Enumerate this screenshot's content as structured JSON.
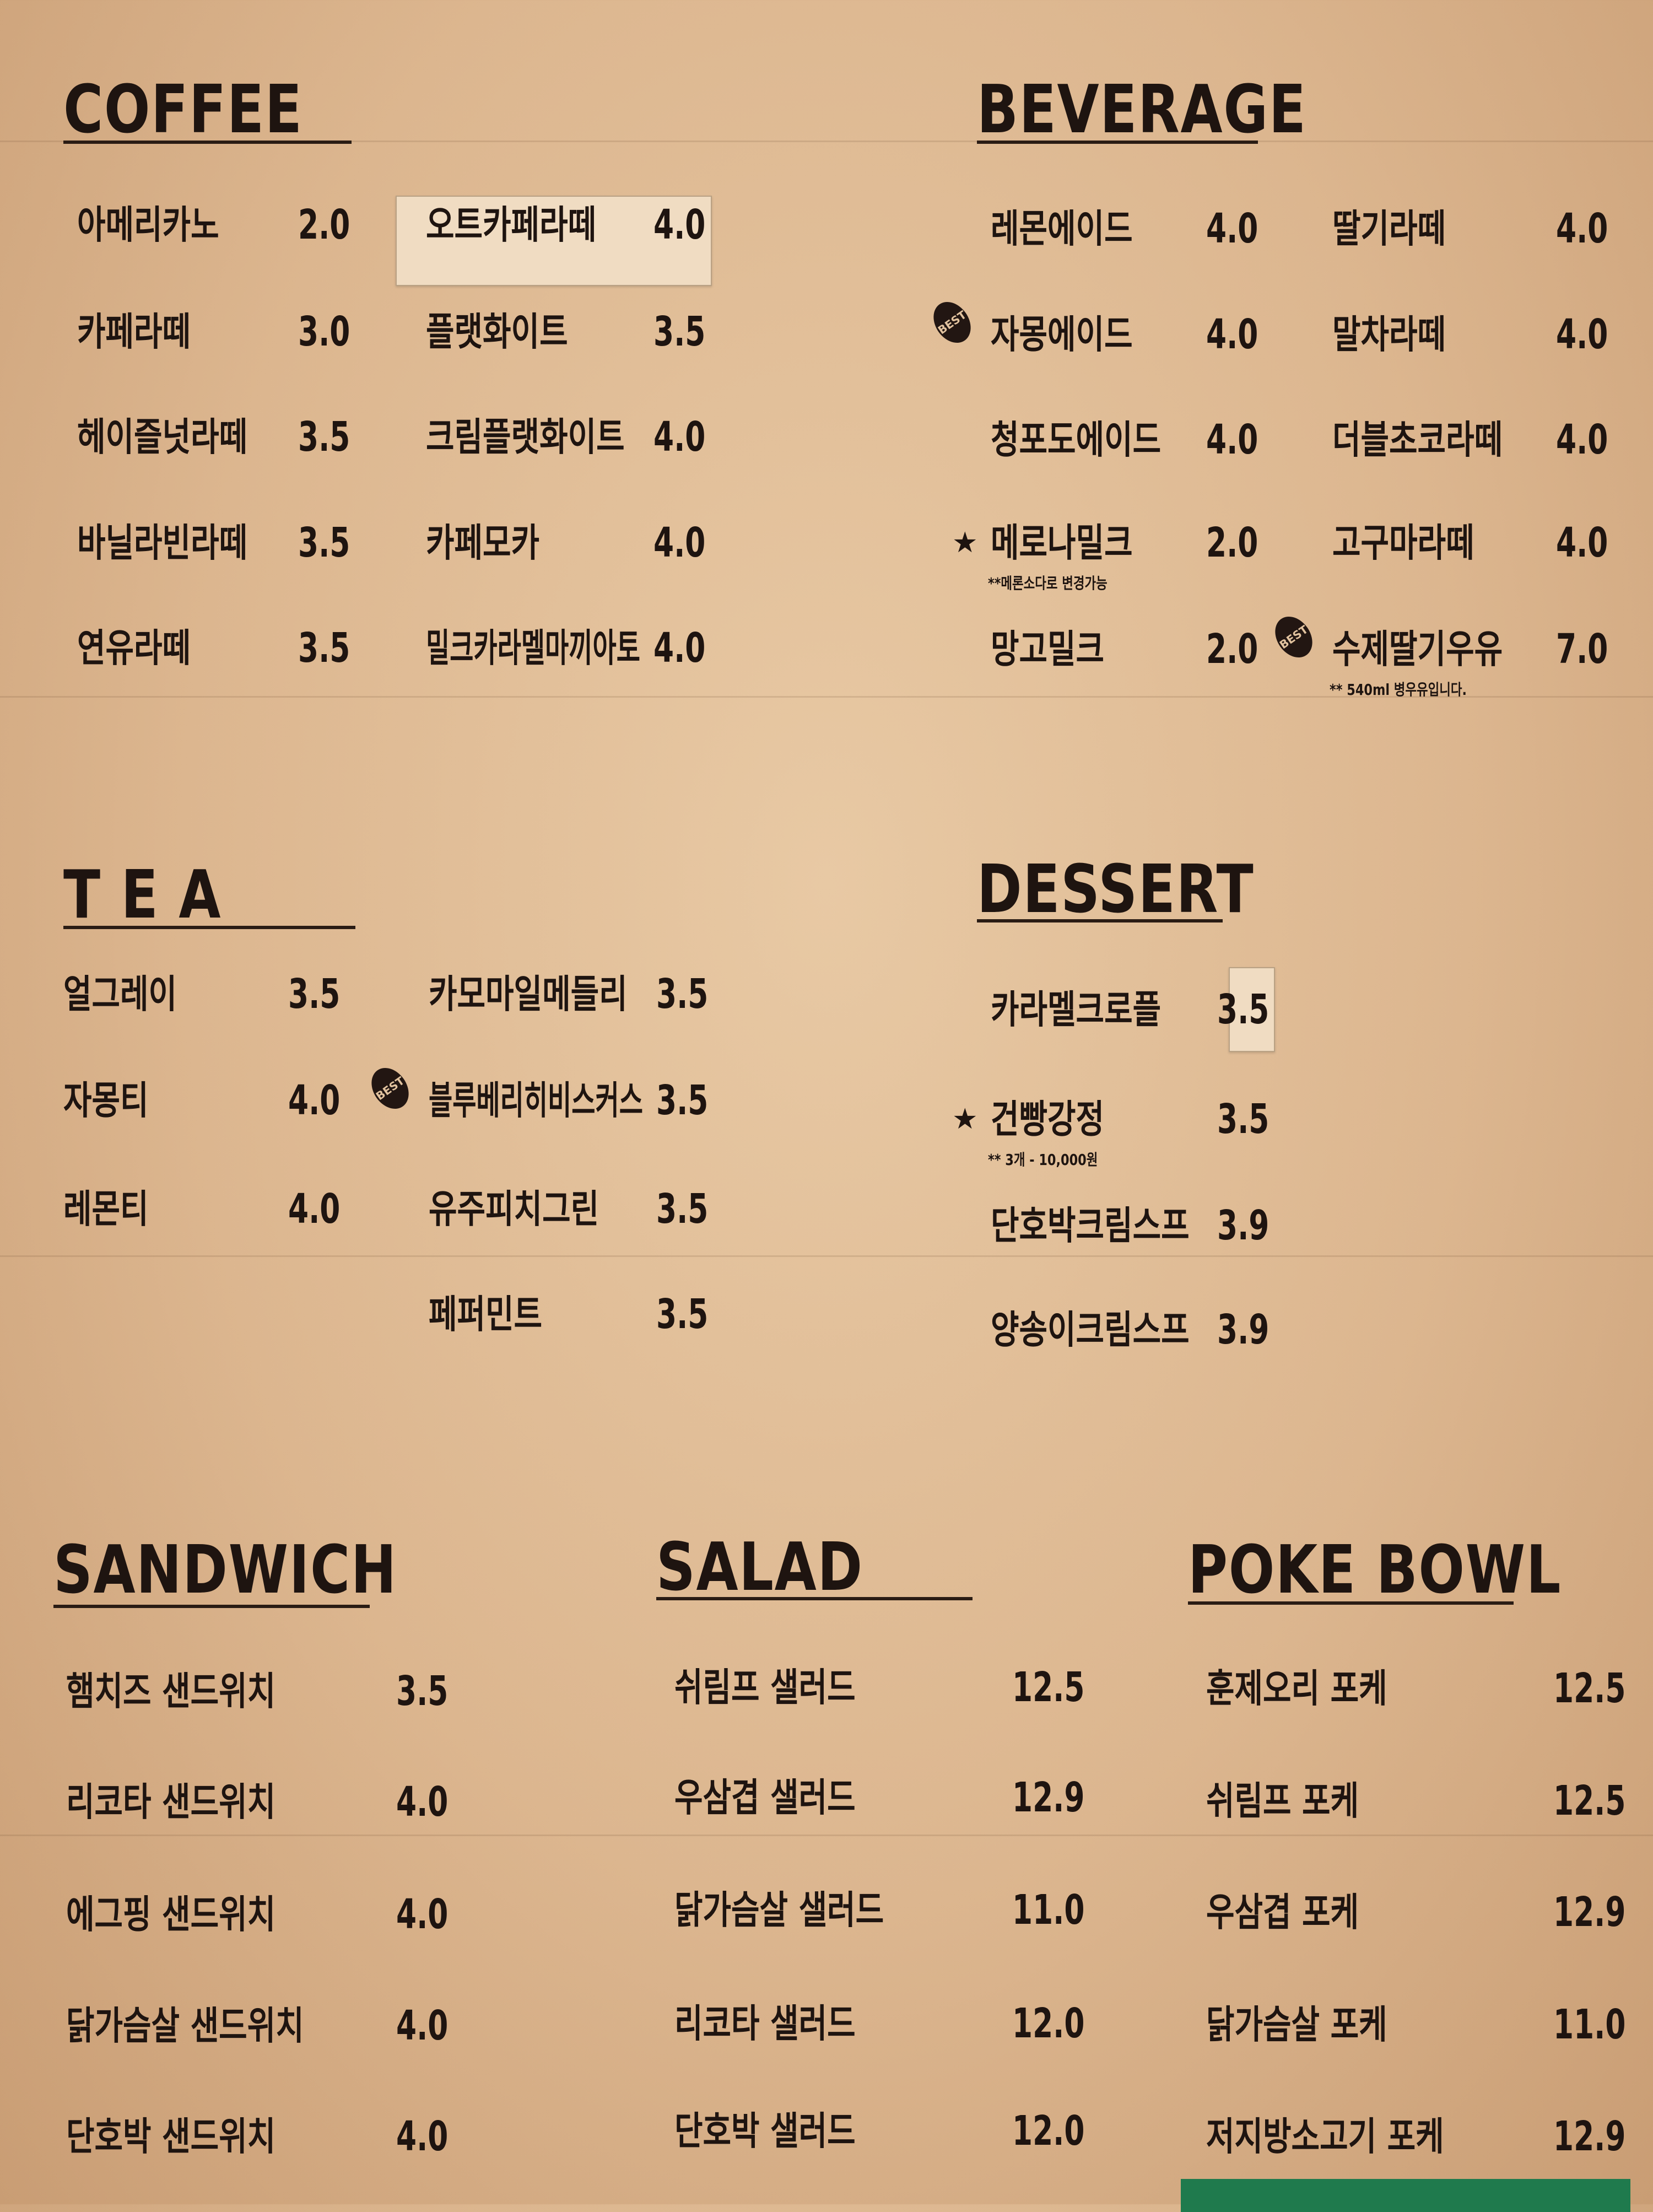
{
  "sections": {
    "coffee": {
      "title": "COFFEE",
      "items": [
        {
          "name": "아메리카노",
          "price": "2.0"
        },
        {
          "name": "카페라떼",
          "price": "3.0"
        },
        {
          "name": "헤이즐넛라떼",
          "price": "3.5"
        },
        {
          "name": "바닐라빈라떼",
          "price": "3.5"
        },
        {
          "name": "연유라떼",
          "price": "3.5"
        },
        {
          "name": "오트카페라떼",
          "price": "4.0"
        },
        {
          "name": "플랫화이트",
          "price": "3.5"
        },
        {
          "name": "크림플랫화이트",
          "price": "4.0"
        },
        {
          "name": "카페모카",
          "price": "4.0"
        },
        {
          "name": "밀크카라멜마끼아토",
          "price": "4.0"
        }
      ]
    },
    "beverage": {
      "title": "BEVERAGE",
      "items": [
        {
          "name": "레몬에이드",
          "price": "4.0"
        },
        {
          "name": "자몽에이드",
          "price": "4.0",
          "badge": "BEST"
        },
        {
          "name": "청포도에이드",
          "price": "4.0"
        },
        {
          "name": "메로나밀크",
          "price": "2.0",
          "star": true,
          "note": "**메론소다로 변경가능"
        },
        {
          "name": "망고밀크",
          "price": "2.0"
        },
        {
          "name": "딸기라떼",
          "price": "4.0"
        },
        {
          "name": "말차라떼",
          "price": "4.0"
        },
        {
          "name": "더블초코라떼",
          "price": "4.0"
        },
        {
          "name": "고구마라떼",
          "price": "4.0"
        },
        {
          "name": "수제딸기우유",
          "price": "7.0",
          "badge": "BEST",
          "note": "** 540ml 병우유입니다."
        }
      ]
    },
    "tea": {
      "title": "T E A",
      "items": [
        {
          "name": "얼그레이",
          "price": "3.5"
        },
        {
          "name": "자몽티",
          "price": "4.0"
        },
        {
          "name": "레몬티",
          "price": "4.0"
        },
        {
          "name": "카모마일메들리",
          "price": "3.5"
        },
        {
          "name": "블루베리히비스커스",
          "price": "3.5",
          "badge": "BEST"
        },
        {
          "name": "유주피치그린",
          "price": "3.5"
        },
        {
          "name": "페퍼민트",
          "price": "3.5"
        }
      ]
    },
    "dessert": {
      "title": "DESSERT",
      "items": [
        {
          "name": "카라멜크로플",
          "price": "3.5"
        },
        {
          "name": "건빵강정",
          "price": "3.5",
          "star": true,
          "note": "** 3개 - 10,000원"
        },
        {
          "name": "단호박크림스프",
          "price": "3.9"
        },
        {
          "name": "양송이크림스프",
          "price": "3.9"
        }
      ]
    },
    "sandwich": {
      "title": "SANDWICH",
      "items": [
        {
          "name": "햄치즈 샌드위치",
          "price": "3.5"
        },
        {
          "name": "리코타 샌드위치",
          "price": "4.0"
        },
        {
          "name": "에그핑 샌드위치",
          "price": "4.0"
        },
        {
          "name": "닭가슴살 샌드위치",
          "price": "4.0"
        },
        {
          "name": "단호박 샌드위치",
          "price": "4.0"
        }
      ]
    },
    "salad": {
      "title": "SALAD",
      "items": [
        {
          "name": "쉬림프 샐러드",
          "price": "12.5"
        },
        {
          "name": "우삼겹 샐러드",
          "price": "12.9"
        },
        {
          "name": "닭가슴살 샐러드",
          "price": "11.0"
        },
        {
          "name": "리코타 샐러드",
          "price": "12.0"
        },
        {
          "name": "단호박 샐러드",
          "price": "12.0"
        }
      ]
    },
    "poke_bowl": {
      "title": "POKE BOWL",
      "items": [
        {
          "name": "훈제오리 포케",
          "price": "12.5"
        },
        {
          "name": "쉬림프 포케",
          "price": "12.5"
        },
        {
          "name": "우삼겹 포케",
          "price": "12.9"
        },
        {
          "name": "닭가슴살 포케",
          "price": "11.0"
        },
        {
          "name": "저지방소고기 포케",
          "price": "12.9"
        }
      ]
    }
  },
  "colors": {
    "paper": "#dcb68f",
    "ink": "#1e1410",
    "green_banner": "#1f7a4d"
  }
}
